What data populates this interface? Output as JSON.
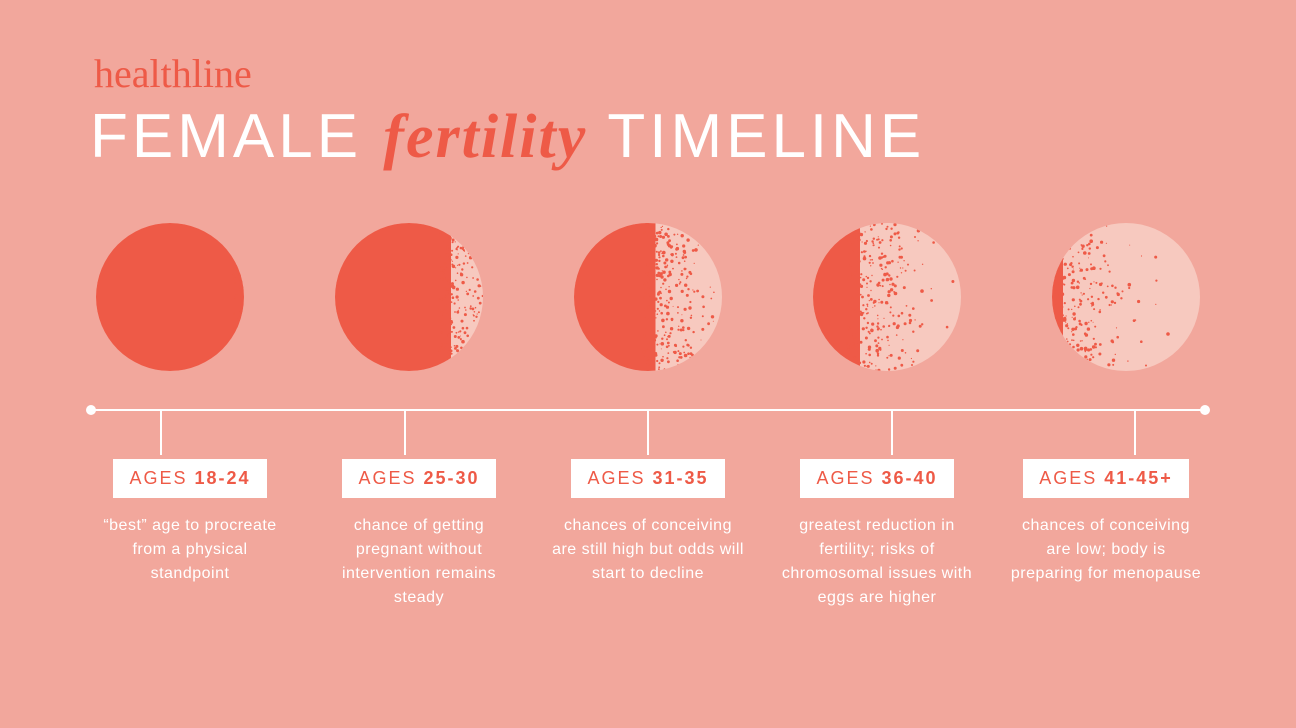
{
  "colors": {
    "background": "#f2a79c",
    "accent": "#ee5a47",
    "white": "#ffffff",
    "boxBg": "#ffffff",
    "speckleLight": "#f7c9bf"
  },
  "brand": "healthline",
  "title": {
    "pre": "FEMALE ",
    "em": "fertility",
    "post": " TIMELINE"
  },
  "stages": [
    {
      "agePrefix": "AGES ",
      "ageRange": "18-24",
      "desc": "“best” age to procreate from a physical standpoint",
      "fillPct": 100
    },
    {
      "agePrefix": "AGES ",
      "ageRange": "25-30",
      "desc": "chance of getting pregnant without intervention remains steady",
      "fillPct": 78
    },
    {
      "agePrefix": "AGES ",
      "ageRange": "31-35",
      "desc": "chances of conceiving are still high but odds will start to decline",
      "fillPct": 55
    },
    {
      "agePrefix": "AGES ",
      "ageRange": "36-40",
      "desc": "greatest reduction in fertility; risks of chromosomal issues with eggs are higher",
      "fillPct": 32
    },
    {
      "agePrefix": "AGES ",
      "ageRange": "41-45+",
      "desc": "chances of conceiving are low; body is preparing for menopause",
      "fillPct": 8
    }
  ]
}
